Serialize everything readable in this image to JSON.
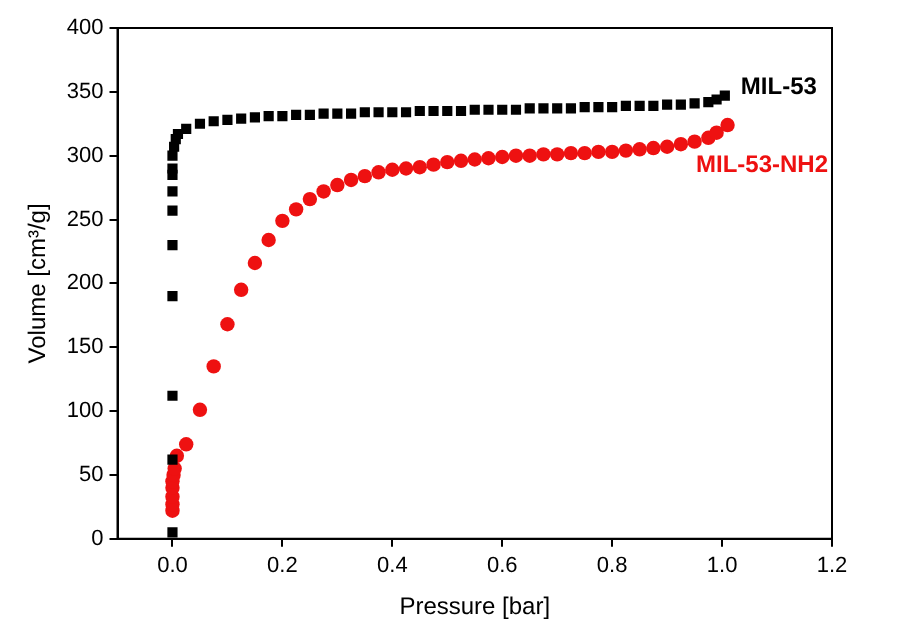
{
  "chart_data": {
    "type": "scatter",
    "xlabel": "Pressure [bar]",
    "ylabel": "Volume [cm³/g]",
    "xlim": [
      -0.1,
      1.2
    ],
    "xticks": [
      {
        "value": 0,
        "label": "0.0"
      },
      {
        "value": 0.2,
        "label": "0.2"
      },
      {
        "value": 0.4,
        "label": "0.4"
      },
      {
        "value": 0.6,
        "label": "0.6"
      },
      {
        "value": 0.8,
        "label": "0.8"
      },
      {
        "value": 1,
        "label": "1.0"
      },
      {
        "value": 1.2,
        "label": "1.2"
      }
    ],
    "ylim": [
      0,
      400
    ],
    "yticks": [
      0,
      50,
      100,
      150,
      200,
      250,
      300,
      350,
      400
    ],
    "grid": false,
    "legend": false,
    "series": [
      {
        "name": "MIL-53",
        "color": "#000000",
        "marker": "square",
        "x": [
          0,
          0,
          0,
          0,
          0,
          0,
          0,
          0,
          0,
          0,
          0.003,
          0.006,
          0.01,
          0.025,
          0.05,
          0.075,
          0.1,
          0.125,
          0.15,
          0.175,
          0.2,
          0.225,
          0.25,
          0.275,
          0.3,
          0.325,
          0.35,
          0.375,
          0.4,
          0.425,
          0.45,
          0.475,
          0.5,
          0.525,
          0.55,
          0.575,
          0.6,
          0.625,
          0.65,
          0.675,
          0.7,
          0.725,
          0.75,
          0.775,
          0.8,
          0.825,
          0.85,
          0.875,
          0.9,
          0.925,
          0.95,
          0.975,
          0.99,
          1.005
        ],
        "values": [
          5,
          62,
          112,
          190,
          230,
          257,
          272,
          285,
          290,
          300,
          307,
          313,
          317,
          321,
          325,
          327,
          328,
          329,
          330,
          331,
          331,
          332,
          332,
          333,
          333,
          333,
          334,
          334,
          334,
          334,
          335,
          335,
          335,
          335,
          336,
          336,
          336,
          336,
          337,
          337,
          337,
          337,
          338,
          338,
          338,
          339,
          339,
          339,
          340,
          340,
          341,
          342,
          344,
          347
        ]
      },
      {
        "name": "MIL-53-NH2",
        "color": "#ee1111",
        "marker": "circle",
        "x": [
          0,
          0,
          0,
          0,
          0,
          0.002,
          0.004,
          0.008,
          0.025,
          0.05,
          0.075,
          0.1,
          0.125,
          0.15,
          0.175,
          0.2,
          0.225,
          0.25,
          0.275,
          0.3,
          0.325,
          0.35,
          0.375,
          0.4,
          0.425,
          0.45,
          0.475,
          0.5,
          0.525,
          0.55,
          0.575,
          0.6,
          0.625,
          0.65,
          0.675,
          0.7,
          0.725,
          0.75,
          0.775,
          0.8,
          0.825,
          0.85,
          0.875,
          0.9,
          0.925,
          0.95,
          0.975,
          0.99,
          1.01
        ],
        "values": [
          22,
          27,
          33,
          40,
          45,
          50,
          55,
          65,
          74,
          101,
          135,
          168,
          195,
          216,
          234,
          249,
          258,
          266,
          272,
          277,
          281,
          284,
          287,
          289,
          290,
          291,
          293,
          295,
          296,
          297,
          298,
          299,
          300,
          300,
          301,
          301,
          302,
          302,
          303,
          303,
          304,
          305,
          306,
          307,
          309,
          311,
          314,
          318,
          324
        ]
      }
    ]
  }
}
